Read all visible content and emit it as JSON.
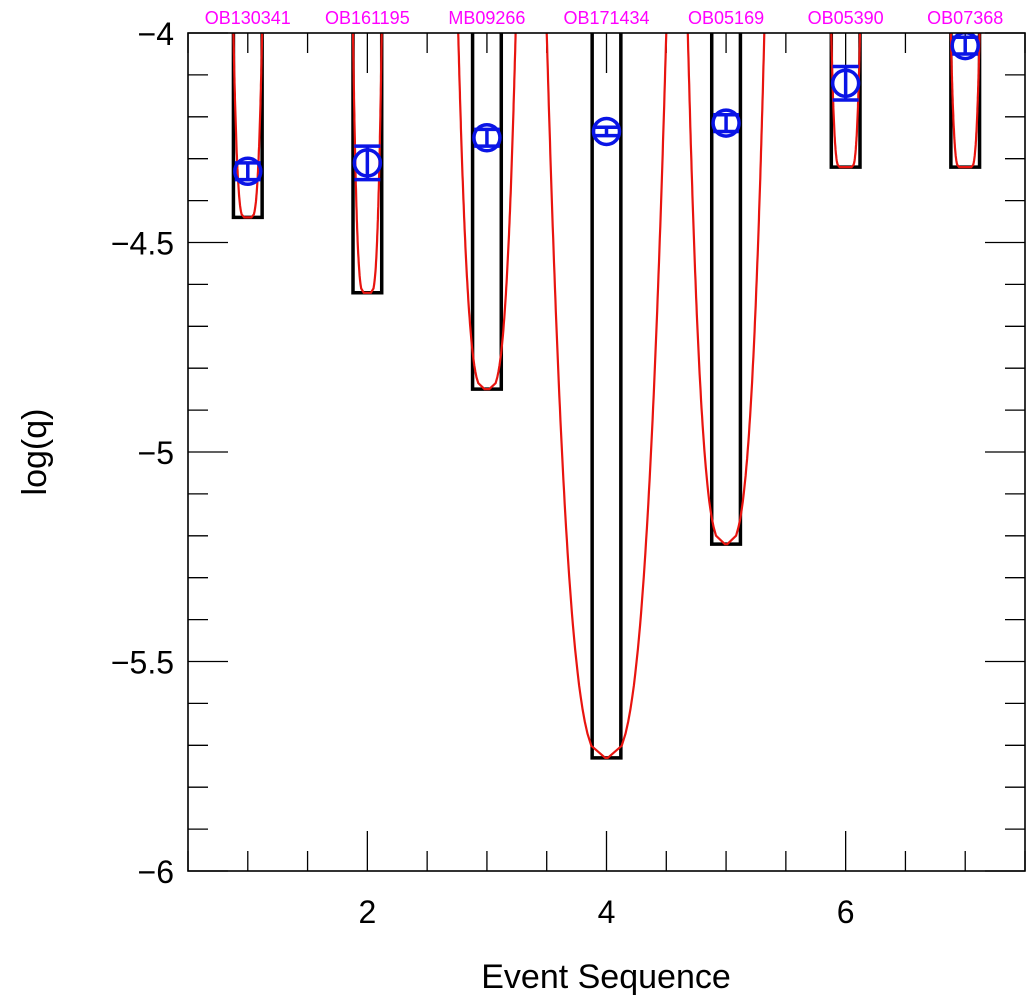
{
  "chart_data": {
    "type": "scatter",
    "xlabel": "Event Sequence",
    "ylabel": "log(q)",
    "xlim": [
      0.5,
      7.5
    ],
    "ylim": [
      -6,
      -4
    ],
    "x_ticks": [
      2,
      4,
      6
    ],
    "y_ticks": [
      -4,
      -4.5,
      -5,
      -5.5,
      -6
    ],
    "x_tick_labels": [
      "2",
      "4",
      "6"
    ],
    "y_tick_labels": [
      "−4",
      "−4.5",
      "−5",
      "−5.5",
      "−6"
    ],
    "x_minor_step": 0.5,
    "y_minor_step": 0.1,
    "events": [
      {
        "x": 1,
        "name": "OB130341",
        "y": -4.33,
        "err": 0.02,
        "box_half_width": 0.12,
        "box_bottom": -4.44,
        "curve_half_width": 0.12,
        "curve_floor_half_width": 0.03
      },
      {
        "x": 2,
        "name": "OB161195",
        "y": -4.31,
        "err": 0.04,
        "box_half_width": 0.12,
        "box_bottom": -4.62,
        "curve_half_width": 0.12,
        "curve_floor_half_width": 0.03
      },
      {
        "x": 3,
        "name": "MB09266",
        "y": -4.25,
        "err": 0.02,
        "box_half_width": 0.12,
        "box_bottom": -4.85,
        "curve_half_width": 0.24,
        "curve_floor_half_width": 0.02
      },
      {
        "x": 4,
        "name": "OB171434",
        "y": -4.235,
        "err": 0.01,
        "box_half_width": 0.12,
        "box_bottom": -5.73,
        "curve_half_width": 0.5,
        "curve_floor_half_width": 0.01
      },
      {
        "x": 5,
        "name": "OB05169",
        "y": -4.215,
        "err": 0.02,
        "box_half_width": 0.12,
        "box_bottom": -5.22,
        "curve_half_width": 0.32,
        "curve_floor_half_width": 0.01
      },
      {
        "x": 6,
        "name": "OB05390",
        "y": -4.12,
        "err": 0.04,
        "box_half_width": 0.12,
        "box_bottom": -4.32,
        "curve_half_width": 0.12,
        "curve_floor_half_width": 0.05
      },
      {
        "x": 7,
        "name": "OB07368",
        "y": -4.03,
        "err": 0.02,
        "box_half_width": 0.12,
        "box_bottom": -4.32,
        "curve_half_width": 0.12,
        "curve_floor_half_width": 0.05
      }
    ],
    "colors": {
      "box": "#000000",
      "curve": "#e8140f",
      "marker": "#0a14e6",
      "event_label": "#ff00ff",
      "axis": "#000000"
    }
  }
}
